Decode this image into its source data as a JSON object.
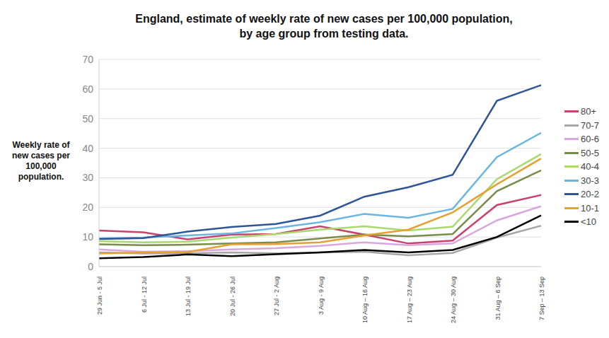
{
  "chart_data": {
    "type": "line",
    "title": "England, estimate of weekly rate of new cases per 100,000 population, by age group from testing data.",
    "y_label": "Weekly rate of new cases per 100,000 population.",
    "categories": [
      "29 Jun - 5 Jul",
      "6 Jul - 12 Jul",
      "13 Jul - 19 Jul",
      "20 Jul - 26 Jul",
      "27 Jul - 2 Aug",
      "3 Aug - 9 Aug",
      "10 Aug – 16 Aug",
      "17 Aug – 23 Aug",
      "24 Aug – 30 Aug",
      "31 Aug – 6 Sep",
      "7 Sep – 13 Sep"
    ],
    "series": [
      {
        "name": "80+",
        "color": "#c8426e",
        "values": [
          12.2,
          11.6,
          9.2,
          10.8,
          11,
          13.6,
          10.8,
          7.8,
          8.8,
          20.8,
          24.2
        ]
      },
      {
        "name": "70-7",
        "color": "#a6a6a6",
        "values": [
          4.8,
          4.4,
          4.5,
          4.8,
          4.5,
          4.8,
          5,
          3.8,
          4.6,
          9.8,
          13.8
        ]
      },
      {
        "name": "60-6",
        "color": "#d9a6e0",
        "values": [
          5.8,
          5,
          5.2,
          5.8,
          6.2,
          7,
          8.2,
          7.2,
          7.8,
          15.6,
          20.4
        ]
      },
      {
        "name": "50-5",
        "color": "#7a8c4a",
        "values": [
          7.5,
          7.2,
          7.4,
          7.8,
          8.2,
          9.5,
          10.8,
          10.2,
          11,
          25.5,
          32.5
        ]
      },
      {
        "name": "40-4",
        "color": "#a8d86e",
        "values": [
          8.6,
          8.2,
          8.4,
          9.8,
          11,
          12.5,
          13.6,
          12.2,
          13.5,
          29.5,
          38
        ]
      },
      {
        "name": "30-3",
        "color": "#6ab6e0",
        "values": [
          9.5,
          9.8,
          10.5,
          11.2,
          13,
          15,
          17.8,
          16.5,
          19.5,
          37,
          45.2
        ]
      },
      {
        "name": "20-2",
        "color": "#2f5597",
        "values": [
          9.3,
          9.6,
          11.8,
          13.4,
          14.4,
          17.2,
          23.6,
          26.8,
          31,
          56,
          61.3
        ]
      },
      {
        "name": "10-1",
        "color": "#e6a030",
        "values": [
          4.4,
          4.8,
          4.9,
          7.5,
          7.6,
          8.2,
          10.5,
          12.5,
          18.3,
          27.8,
          36.5
        ]
      },
      {
        "name": "<10",
        "color": "#000000",
        "values": [
          2.8,
          3.2,
          4.1,
          3.5,
          4.2,
          4.8,
          5.6,
          4.8,
          5.6,
          10,
          17.3
        ]
      }
    ],
    "ylim": [
      0,
      70
    ],
    "yticks": [
      0,
      10,
      20,
      30,
      40,
      50,
      60,
      70
    ],
    "grid": true,
    "legend": "right"
  }
}
